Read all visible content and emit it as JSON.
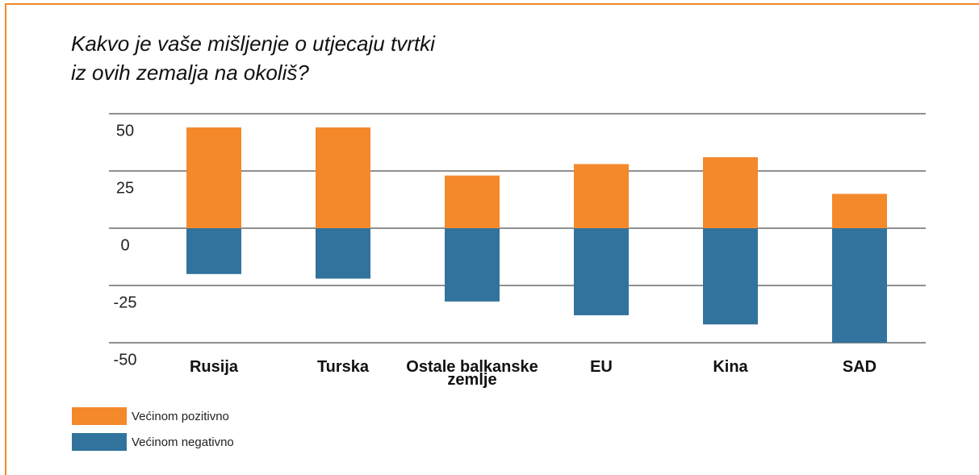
{
  "chart_data": {
    "type": "bar",
    "stacked": true,
    "title": "Kakvo je vaše mišljenje o utjecaju tvrtki iz ovih zemalja na okoliš?",
    "categories": [
      "Rusija",
      "Turska",
      "Ostale balkanske zemlje",
      "EU",
      "Kina",
      "SAD"
    ],
    "series": [
      {
        "name": "Većinom pozitivno",
        "color": "#f4892b",
        "values": [
          44,
          44,
          23,
          28,
          31,
          15
        ]
      },
      {
        "name": "Većinom negativno",
        "color": "#32739e",
        "values": [
          -20,
          -22,
          -32,
          -38,
          -42,
          -50
        ]
      }
    ],
    "ylim": [
      -50,
      50
    ],
    "yticks": [
      50,
      25,
      0,
      -25,
      -50
    ],
    "grid": true,
    "legend": "bottom-left"
  }
}
